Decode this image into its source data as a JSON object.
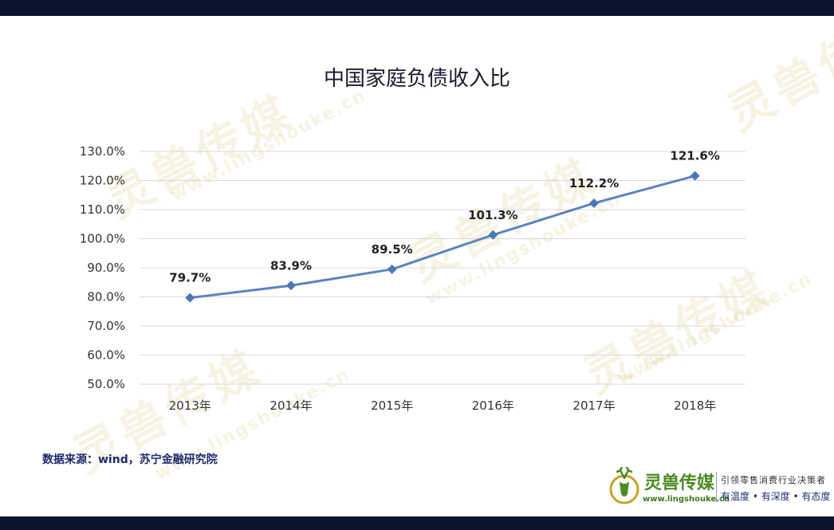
{
  "watermark": {
    "brand": "灵兽传媒",
    "url": "www.lingshouke.cn"
  },
  "chart_data": {
    "type": "line",
    "title": "中国家庭负债收入比",
    "categories": [
      "2013年",
      "2014年",
      "2015年",
      "2016年",
      "2017年",
      "2018年"
    ],
    "values": [
      79.7,
      83.9,
      89.5,
      101.3,
      112.2,
      121.6
    ],
    "data_labels": [
      "79.7%",
      "83.9%",
      "89.5%",
      "101.3%",
      "112.2%",
      "121.6%"
    ],
    "ylim": [
      50,
      130
    ],
    "y_ticks": [
      50,
      60,
      70,
      80,
      90,
      100,
      110,
      120,
      130
    ],
    "y_tick_labels": [
      "50.0%",
      "60.0%",
      "70.0%",
      "80.0%",
      "90.0%",
      "100.0%",
      "110.0%",
      "120.0%",
      "130.0%"
    ],
    "grid": true,
    "legend": "none",
    "line_color": "#5b84bd",
    "marker_color": "#4a78b5",
    "marker": "diamond"
  },
  "footer": {
    "source": "数据来源：wind，苏宁金融研究院"
  },
  "brand": {
    "name": "灵兽传媒",
    "url": "www.lingshouke.cn",
    "slogan": "引领零售消费行业决策者",
    "tags": "有温度 • 有深度 • 有态度",
    "logo_icon": "deer-head-icon",
    "name_color": "#4a8a23"
  },
  "colors": {
    "band": "#0b1530",
    "grid": "#d9d9d9",
    "axis_text": "#333333"
  }
}
